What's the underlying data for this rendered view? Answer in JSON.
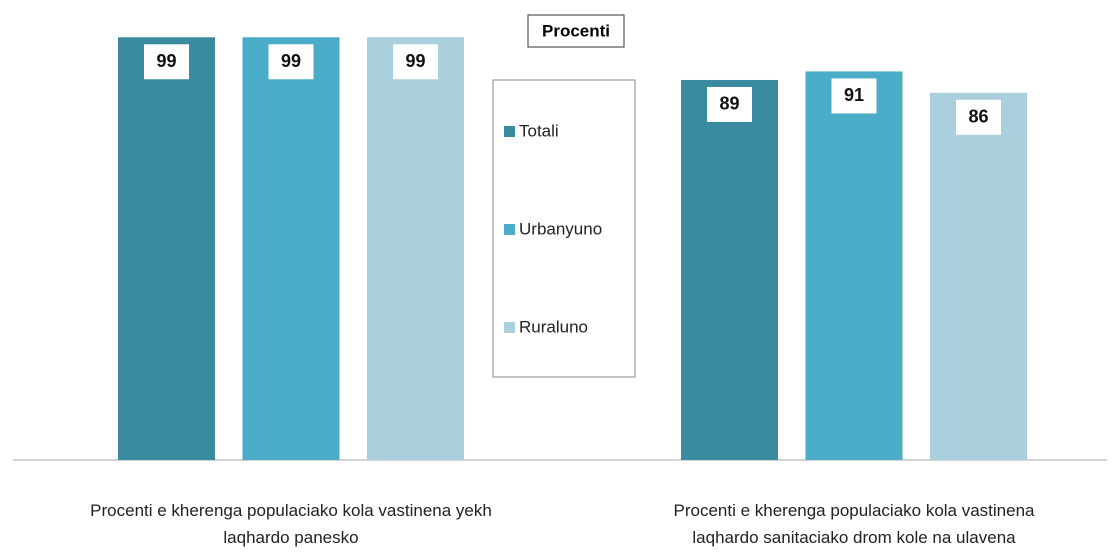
{
  "chart_data": {
    "type": "bar",
    "title": "Procenti",
    "categories": [
      "Procenti e kherenga populaciako kola vastinena yekh laqhardo panesko",
      "Procenti e kherenga populaciako kola vastinena laqhardo sanitaciako drom kole na ulavena"
    ],
    "series": [
      {
        "name": "Totali",
        "color": "#3a8ba0",
        "values": [
          99,
          89
        ]
      },
      {
        "name": "Urbanyuno",
        "color": "#4aacc6",
        "values": [
          99,
          91
        ]
      },
      {
        "name": "Ruraluno",
        "color": "#a9d0dc",
        "values": [
          99,
          86
        ]
      }
    ],
    "ylim": [
      0,
      100
    ]
  }
}
